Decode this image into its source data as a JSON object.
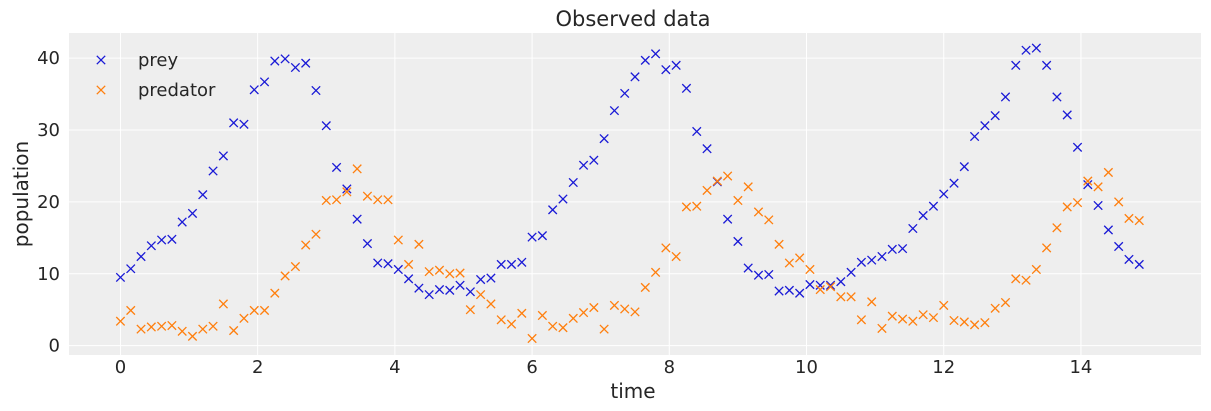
{
  "chart_data": {
    "type": "scatter",
    "title": "Observed data",
    "xlabel": "time",
    "ylabel": "population",
    "xlim": [
      -0.75,
      15.75
    ],
    "ylim": [
      -1.3,
      43.5
    ],
    "xticks": [
      0,
      2,
      4,
      6,
      8,
      10,
      12,
      14
    ],
    "yticks": [
      0,
      10,
      20,
      30,
      40
    ],
    "xtick_labels": [
      "0",
      "2",
      "4",
      "6",
      "8",
      "10",
      "12",
      "14"
    ],
    "ytick_labels": [
      "0",
      "10",
      "20",
      "30",
      "40"
    ],
    "grid": true,
    "legend_position": "top-left",
    "x_start": 0,
    "x_step": 0.15,
    "series": [
      {
        "name": "prey",
        "color": "#1a1ad6",
        "marker": "x",
        "values": [
          9.5,
          10.7,
          12.4,
          13.9,
          14.7,
          14.8,
          17.2,
          18.4,
          21.0,
          24.3,
          26.4,
          31.0,
          30.8,
          35.6,
          36.7,
          39.6,
          39.9,
          38.7,
          39.3,
          35.5,
          30.6,
          24.8,
          21.8,
          17.6,
          14.2,
          11.5,
          11.4,
          10.6,
          9.3,
          8.0,
          7.1,
          7.8,
          7.7,
          8.4,
          7.5,
          9.2,
          9.4,
          11.3,
          11.3,
          11.6,
          15.1,
          15.3,
          18.9,
          20.4,
          22.7,
          25.1,
          25.8,
          28.8,
          32.7,
          35.1,
          37.4,
          39.7,
          40.6,
          38.4,
          39.0,
          35.8,
          29.8,
          27.4,
          22.8,
          17.6,
          14.5,
          10.8,
          9.8,
          9.9,
          7.6,
          7.7,
          7.3,
          8.5,
          8.4,
          8.4,
          8.9,
          10.2,
          11.6,
          11.9,
          12.4,
          13.4,
          13.5,
          16.3,
          18.1,
          19.4,
          21.1,
          22.6,
          24.9,
          29.1,
          30.6,
          32.0,
          34.6,
          39.0,
          41.1,
          41.4,
          39.0,
          34.6,
          32.1,
          27.6,
          22.4,
          19.5,
          16.1,
          13.8,
          12.0,
          11.3
        ]
      },
      {
        "name": "predator",
        "color": "#ff7f0e",
        "marker": "x",
        "values": [
          3.4,
          4.9,
          2.3,
          2.6,
          2.7,
          2.8,
          2.0,
          1.3,
          2.3,
          2.7,
          5.8,
          2.1,
          3.8,
          4.9,
          4.9,
          7.3,
          9.7,
          11.0,
          14.0,
          15.5,
          20.2,
          20.3,
          21.4,
          24.6,
          20.8,
          20.3,
          20.3,
          14.7,
          11.3,
          14.1,
          10.3,
          10.5,
          10.0,
          10.1,
          5.0,
          7.1,
          5.8,
          3.6,
          3.0,
          4.5,
          1.0,
          4.2,
          2.7,
          2.5,
          3.8,
          4.6,
          5.3,
          2.3,
          5.6,
          5.1,
          4.7,
          8.1,
          10.2,
          13.6,
          12.4,
          19.3,
          19.4,
          21.6,
          22.9,
          23.6,
          20.2,
          22.1,
          18.6,
          17.5,
          14.1,
          11.5,
          12.2,
          10.6,
          7.8,
          8.2,
          6.8,
          6.8,
          3.6,
          6.1,
          2.4,
          4.1,
          3.7,
          3.4,
          4.3,
          3.9,
          5.6,
          3.5,
          3.3,
          2.9,
          3.2,
          5.2,
          6.0,
          9.3,
          9.1,
          10.6,
          13.6,
          16.4,
          19.3,
          19.9,
          22.9,
          22.1,
          24.1,
          20.0,
          17.7,
          17.4
        ]
      }
    ]
  }
}
